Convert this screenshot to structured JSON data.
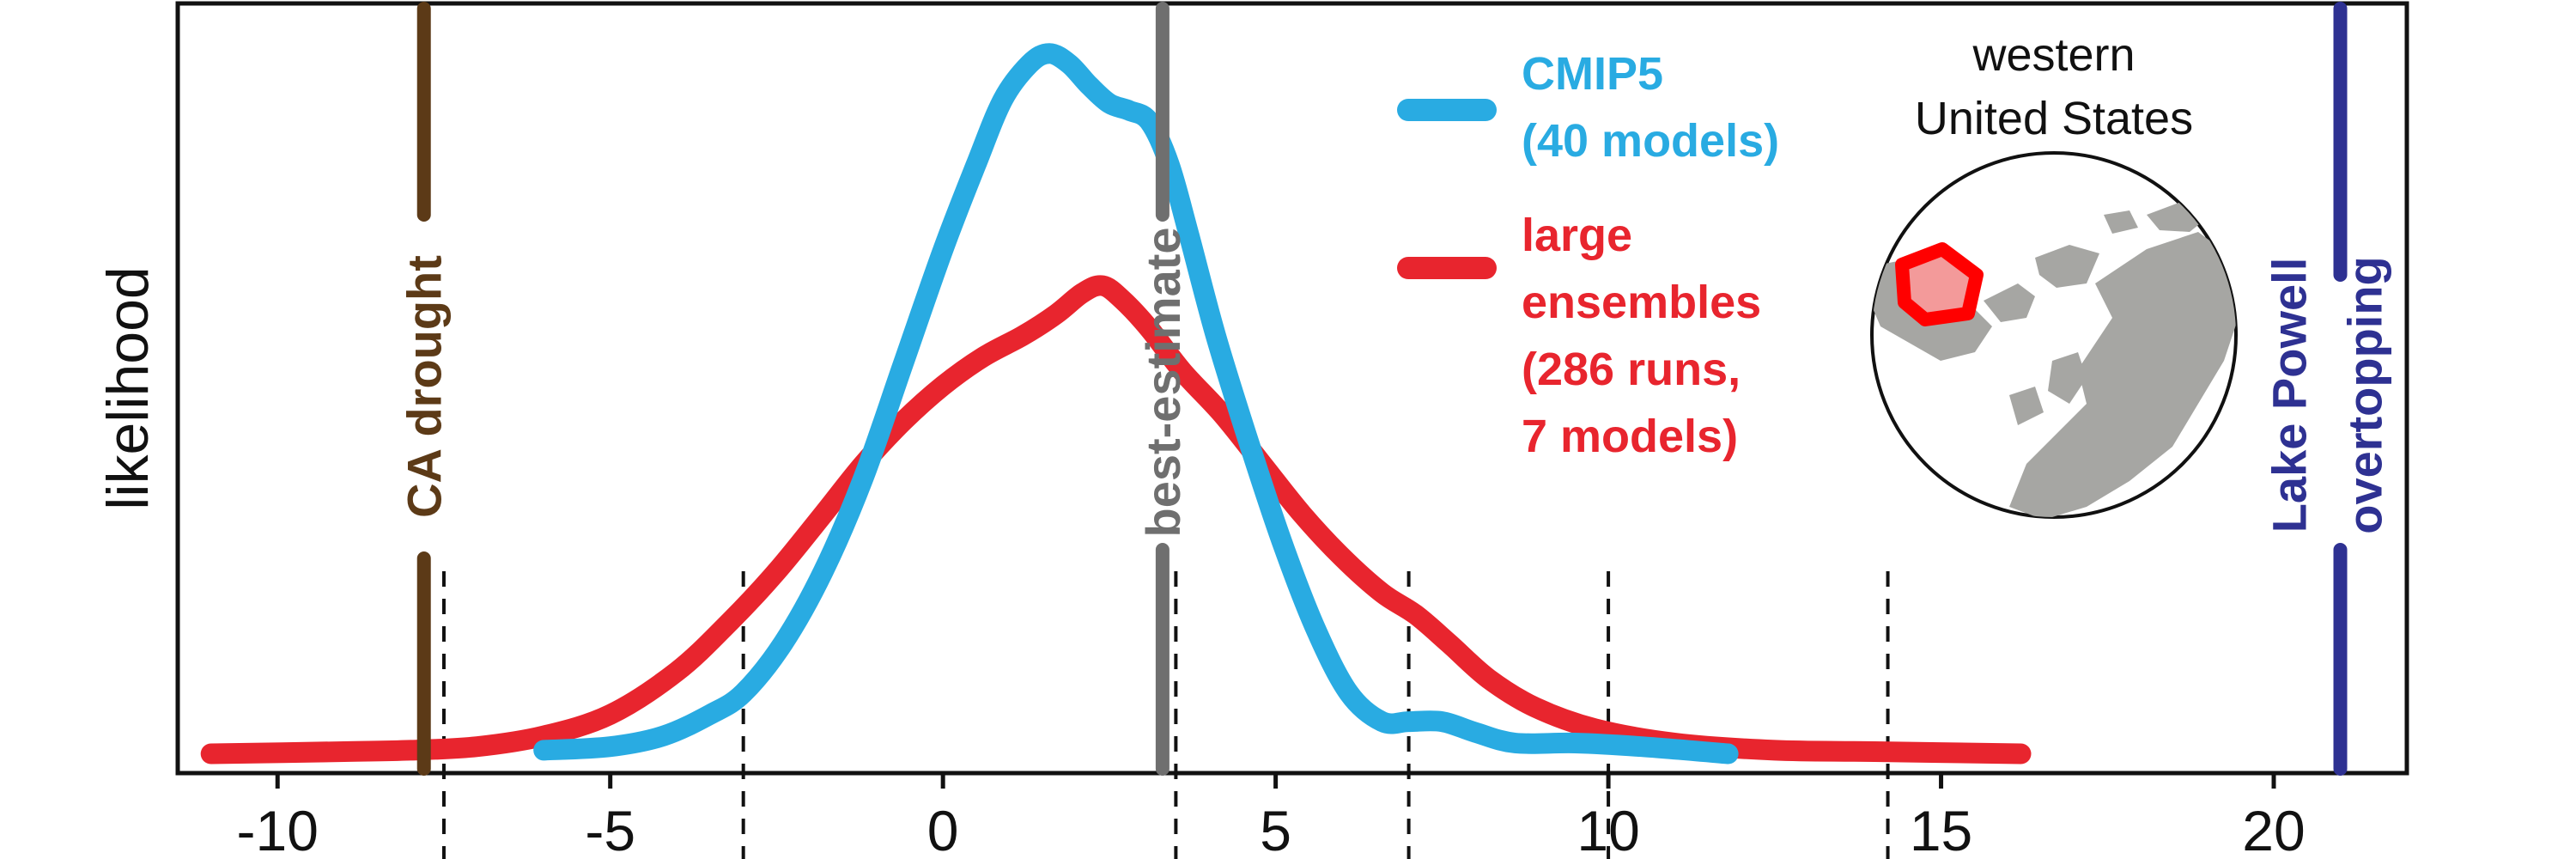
{
  "chart_data": {
    "type": "line",
    "title": "",
    "xlabel": "",
    "ylabel": "likelihood",
    "xlim": [
      -11.5,
      22
    ],
    "ylim": [
      0,
      1
    ],
    "xticks": [
      -10,
      -5,
      0,
      5,
      10,
      15,
      20
    ],
    "xtick_labels": [
      "-10",
      "-5",
      "0",
      "5",
      "10",
      "15",
      "20"
    ],
    "grid": false,
    "legend_position": "top-right",
    "series": [
      {
        "name": "CMIP5\n(40 models)",
        "color": "#29abe2",
        "x": [
          -6,
          -5,
          -4.2,
          -3.5,
          -3,
          -2.4,
          -1.8,
          -1.2,
          -0.6,
          0,
          0.5,
          0.9,
          1.3,
          1.6,
          1.9,
          2.2,
          2.5,
          2.8,
          3.1,
          3.4,
          3.7,
          4.1,
          4.6,
          5.1,
          5.6,
          6.1,
          6.6,
          7,
          7.5,
          8,
          8.6,
          9.5,
          10.5,
          11.8
        ],
        "y": [
          0.02,
          0.025,
          0.04,
          0.07,
          0.1,
          0.17,
          0.27,
          0.4,
          0.56,
          0.72,
          0.84,
          0.93,
          0.98,
          0.995,
          0.98,
          0.95,
          0.925,
          0.915,
          0.9,
          0.84,
          0.74,
          0.6,
          0.45,
          0.31,
          0.19,
          0.1,
          0.06,
          0.06,
          0.06,
          0.045,
          0.03,
          0.03,
          0.025,
          0.015
        ]
      },
      {
        "name": "large\nensembles\n(286 runs,\n7 models)",
        "color": "#e8252e",
        "x": [
          -11,
          -9,
          -8,
          -7,
          -6,
          -5,
          -4,
          -3.2,
          -2.5,
          -1.8,
          -1.2,
          -0.6,
          0,
          0.6,
          1.2,
          1.7,
          2.1,
          2.4,
          2.7,
          3.1,
          3.6,
          4.2,
          4.8,
          5.4,
          6,
          6.6,
          7.1,
          7.6,
          8.2,
          8.9,
          9.8,
          11,
          12.5,
          14,
          16.2
        ],
        "y": [
          0.015,
          0.018,
          0.02,
          0.025,
          0.04,
          0.07,
          0.13,
          0.2,
          0.27,
          0.35,
          0.42,
          0.48,
          0.53,
          0.57,
          0.6,
          0.63,
          0.66,
          0.67,
          0.65,
          0.61,
          0.55,
          0.49,
          0.42,
          0.35,
          0.29,
          0.24,
          0.21,
          0.17,
          0.12,
          0.08,
          0.05,
          0.03,
          0.02,
          0.018,
          0.015
        ]
      }
    ],
    "vertical_markers": [
      {
        "name": "CA drought",
        "x": -7.8,
        "color": "#5c3a17"
      },
      {
        "name": "best-estimate",
        "x": 3.3,
        "color": "#6f6f6f"
      },
      {
        "name": "Lake Powell\novertopping",
        "x": 21,
        "color": "#2e3192"
      }
    ],
    "dashed_lines_x": [
      -7.5,
      -3.0,
      3.5,
      7.0,
      10.0,
      14.2
    ],
    "inset_map_label": "western\nUnited States"
  }
}
